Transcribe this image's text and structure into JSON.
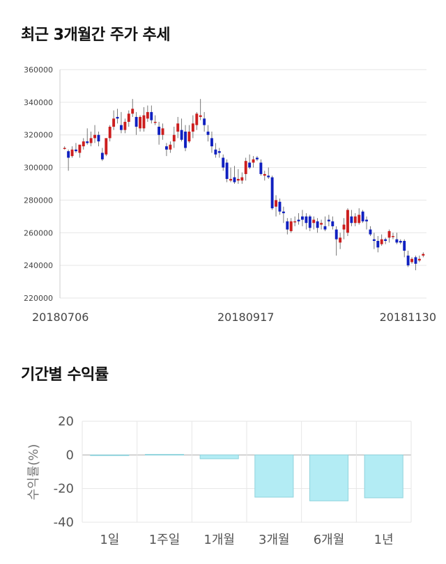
{
  "sections": {
    "price_title": "최근 3개월간 주가 추세",
    "returns_title": "기간별 수익률"
  },
  "colors": {
    "up": "#cc1e1e",
    "down": "#1020c0",
    "bar_fill": "#b3ecf4",
    "bar_stroke": "#8fd3dc",
    "grid": "#e6e6e6"
  },
  "chart_data": [
    {
      "type": "candlestick",
      "title": "최근 3개월간 주가 추세",
      "ylim": [
        220000,
        360000
      ],
      "y_ticks": [
        220000,
        240000,
        260000,
        280000,
        300000,
        320000,
        340000,
        360000
      ],
      "x_tick_labels": [
        "20180706",
        "20180917",
        "20181130"
      ],
      "grid": true,
      "candles": [
        [
          312000,
          313000,
          311000,
          312000
        ],
        [
          310000,
          311000,
          298000,
          306000
        ],
        [
          307000,
          313000,
          306000,
          311000
        ],
        [
          311000,
          315000,
          309000,
          310000
        ],
        [
          309000,
          314000,
          306000,
          314000
        ],
        [
          313000,
          318000,
          311000,
          316000
        ],
        [
          316000,
          324000,
          314000,
          315000
        ],
        [
          315000,
          322000,
          313000,
          318000
        ],
        [
          318000,
          326000,
          315000,
          320000
        ],
        [
          320000,
          322000,
          313000,
          316000
        ],
        [
          309000,
          312000,
          304000,
          305000
        ],
        [
          308000,
          318000,
          307000,
          318000
        ],
        [
          318000,
          326000,
          316000,
          325000
        ],
        [
          325000,
          335000,
          323000,
          330000
        ],
        [
          331000,
          336000,
          327000,
          330000
        ],
        [
          326000,
          334000,
          321000,
          323000
        ],
        [
          323000,
          330000,
          321000,
          328000
        ],
        [
          328000,
          335000,
          325000,
          333000
        ],
        [
          333000,
          342000,
          331000,
          336000
        ],
        [
          331000,
          334000,
          320000,
          325000
        ],
        [
          324000,
          332000,
          322000,
          331000
        ],
        [
          324000,
          337000,
          322000,
          332000
        ],
        [
          330000,
          338000,
          328000,
          334000
        ],
        [
          334000,
          338000,
          327000,
          329000
        ],
        [
          328000,
          332000,
          326000,
          328000
        ],
        [
          325000,
          328000,
          314000,
          320000
        ],
        [
          320000,
          327000,
          317000,
          324000
        ],
        [
          313000,
          315000,
          307000,
          311000
        ],
        [
          311000,
          316000,
          309000,
          314000
        ],
        [
          316000,
          325000,
          312000,
          320000
        ],
        [
          322000,
          331000,
          318000,
          327000
        ],
        [
          323000,
          330000,
          316000,
          317000
        ],
        [
          322000,
          326000,
          310000,
          312000
        ],
        [
          316000,
          326000,
          315000,
          322000
        ],
        [
          322000,
          332000,
          318000,
          327000
        ],
        [
          326000,
          334000,
          323000,
          333000
        ],
        [
          331000,
          342000,
          329000,
          332000
        ],
        [
          330000,
          334000,
          322000,
          326000
        ],
        [
          322000,
          326000,
          316000,
          320000
        ],
        [
          318000,
          322000,
          309000,
          313000
        ],
        [
          311000,
          315000,
          306000,
          308000
        ],
        [
          310000,
          312000,
          306000,
          309000
        ],
        [
          306000,
          308000,
          298000,
          300000
        ],
        [
          303000,
          305000,
          291000,
          293000
        ],
        [
          292000,
          300000,
          291000,
          293000
        ],
        [
          294000,
          301000,
          290000,
          291000
        ],
        [
          292000,
          299000,
          290000,
          293000
        ],
        [
          292000,
          297000,
          290000,
          294000
        ],
        [
          296000,
          306000,
          292000,
          304000
        ],
        [
          303000,
          308000,
          299000,
          300000
        ],
        [
          303000,
          307000,
          300000,
          305000
        ],
        [
          306000,
          307000,
          304000,
          305000
        ],
        [
          303000,
          305000,
          295000,
          296000
        ],
        [
          295000,
          298000,
          292000,
          296000
        ],
        [
          295000,
          300000,
          293000,
          294000
        ],
        [
          294000,
          295000,
          274000,
          275000
        ],
        [
          276000,
          283000,
          270000,
          280000
        ],
        [
          279000,
          281000,
          271000,
          273000
        ],
        [
          273000,
          276000,
          266000,
          272000
        ],
        [
          267000,
          269000,
          259000,
          262000
        ],
        [
          261000,
          269000,
          260000,
          267000
        ],
        [
          267000,
          270000,
          264000,
          267000
        ],
        [
          268000,
          272000,
          265000,
          267000
        ],
        [
          270000,
          274000,
          264000,
          268000
        ],
        [
          270000,
          272000,
          262000,
          266000
        ],
        [
          270000,
          271000,
          261000,
          263000
        ],
        [
          266000,
          270000,
          262000,
          268000
        ],
        [
          267000,
          269000,
          260000,
          263000
        ],
        [
          265000,
          268000,
          262000,
          266000
        ],
        [
          264000,
          270000,
          261000,
          262000
        ],
        [
          268000,
          271000,
          264000,
          267000
        ],
        [
          267000,
          270000,
          262000,
          264000
        ],
        [
          262000,
          264000,
          246000,
          256000
        ],
        [
          254000,
          260000,
          250000,
          257000
        ],
        [
          262000,
          269000,
          256000,
          265000
        ],
        [
          260000,
          275000,
          258000,
          274000
        ],
        [
          270000,
          274000,
          264000,
          266000
        ],
        [
          266000,
          272000,
          264000,
          270000
        ],
        [
          266000,
          275000,
          265000,
          271000
        ],
        [
          273000,
          274000,
          266000,
          267000
        ],
        [
          268000,
          270000,
          262000,
          267000
        ],
        [
          262000,
          264000,
          258000,
          259000
        ],
        [
          256000,
          260000,
          250000,
          255000
        ],
        [
          255000,
          258000,
          248000,
          251000
        ],
        [
          253000,
          259000,
          252000,
          256000
        ],
        [
          256000,
          257000,
          253000,
          255000
        ],
        [
          257000,
          262000,
          254000,
          261000
        ],
        [
          258000,
          260000,
          256000,
          258000
        ],
        [
          256000,
          260000,
          253000,
          254000
        ],
        [
          255000,
          256000,
          253000,
          254000
        ],
        [
          255000,
          256000,
          245000,
          249000
        ],
        [
          246000,
          249000,
          239000,
          240000
        ],
        [
          242000,
          245000,
          241000,
          244000
        ],
        [
          245000,
          246000,
          237000,
          241000
        ],
        [
          243000,
          246000,
          242000,
          244000
        ],
        [
          246000,
          248000,
          245000,
          247000
        ]
      ]
    },
    {
      "type": "bar",
      "title": "기간별 수익률",
      "categories": [
        "1일",
        "1주일",
        "1개월",
        "3개월",
        "6개월",
        "1년"
      ],
      "values": [
        0.0,
        0.3,
        -2.3,
        -25.1,
        -27.3,
        -25.5
      ],
      "ylabel": "수익률(%)",
      "ylim": [
        -40,
        20
      ],
      "y_ticks": [
        20,
        0,
        -20,
        -40
      ],
      "grid": true
    }
  ]
}
